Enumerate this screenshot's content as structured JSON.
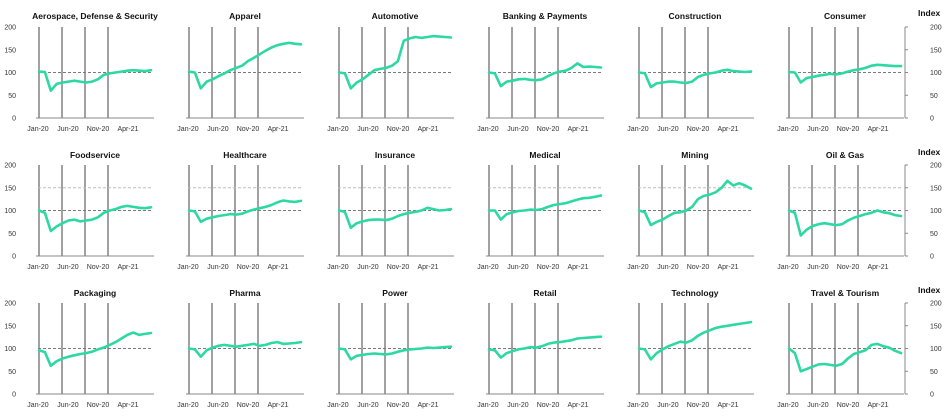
{
  "layout": {
    "cols": 6,
    "rows": 3,
    "ylim": [
      0,
      200
    ],
    "yticks": [
      0,
      50,
      100,
      150,
      200
    ],
    "xticks": [
      "Jan-20",
      "Jun-20",
      "Nov-20",
      "Apr-21"
    ],
    "right_axis_label": "Index",
    "line_color": "#2ed8a3",
    "baseline_color": "#7a7a7a",
    "upper_ref_color": "#bdbdbd",
    "axis_color": "#888888",
    "divider_color": "#6e6e6e"
  },
  "chart_data": [
    {
      "type": "line",
      "title": "Aerospace, Defense & Security",
      "ylim": [
        0,
        200
      ],
      "ref_lines": [
        100
      ],
      "x": [
        "Jan-20",
        "Feb-20",
        "Mar-20",
        "Apr-20",
        "May-20",
        "Jun-20",
        "Jul-20",
        "Aug-20",
        "Sep-20",
        "Oct-20",
        "Nov-20",
        "Dec-20",
        "Jan-21",
        "Feb-21",
        "Mar-21",
        "Apr-21",
        "May-21",
        "Jun-21",
        "Jul-21",
        "Aug-21"
      ],
      "values": [
        102,
        101,
        60,
        75,
        78,
        80,
        82,
        80,
        78,
        80,
        85,
        95,
        98,
        100,
        102,
        104,
        105,
        104,
        103,
        105
      ]
    },
    {
      "type": "line",
      "title": "Apparel",
      "ylim": [
        0,
        200
      ],
      "ref_lines": [
        100
      ],
      "x": [
        "Jan-20",
        "Feb-20",
        "Mar-20",
        "Apr-20",
        "May-20",
        "Jun-20",
        "Jul-20",
        "Aug-20",
        "Sep-20",
        "Oct-20",
        "Nov-20",
        "Dec-20",
        "Jan-21",
        "Feb-21",
        "Mar-21",
        "Apr-21",
        "May-21",
        "Jun-21",
        "Jul-21",
        "Aug-21"
      ],
      "values": [
        102,
        100,
        65,
        80,
        85,
        92,
        98,
        105,
        110,
        115,
        125,
        132,
        140,
        148,
        155,
        160,
        163,
        165,
        163,
        162
      ]
    },
    {
      "type": "line",
      "title": "Automotive",
      "ylim": [
        0,
        200
      ],
      "ref_lines": [
        100
      ],
      "x": [
        "Jan-20",
        "Feb-20",
        "Mar-20",
        "Apr-20",
        "May-20",
        "Jun-20",
        "Jul-20",
        "Aug-20",
        "Sep-20",
        "Oct-20",
        "Nov-20",
        "Dec-20",
        "Jan-21",
        "Feb-21",
        "Mar-21",
        "Apr-21",
        "May-21",
        "Jun-21",
        "Jul-21",
        "Aug-21"
      ],
      "values": [
        100,
        98,
        65,
        78,
        85,
        95,
        105,
        108,
        110,
        115,
        125,
        170,
        175,
        178,
        176,
        178,
        180,
        179,
        178,
        177
      ]
    },
    {
      "type": "line",
      "title": "Banking & Payments",
      "ylim": [
        0,
        200
      ],
      "ref_lines": [
        100
      ],
      "x": [
        "Jan-20",
        "Feb-20",
        "Mar-20",
        "Apr-20",
        "May-20",
        "Jun-20",
        "Jul-20",
        "Aug-20",
        "Sep-20",
        "Oct-20",
        "Nov-20",
        "Dec-20",
        "Jan-21",
        "Feb-21",
        "Mar-21",
        "Apr-21",
        "May-21",
        "Jun-21",
        "Jul-21",
        "Aug-21"
      ],
      "values": [
        100,
        98,
        70,
        80,
        82,
        85,
        86,
        84,
        83,
        85,
        92,
        98,
        102,
        104,
        110,
        120,
        112,
        113,
        112,
        111
      ]
    },
    {
      "type": "line",
      "title": "Construction",
      "ylim": [
        0,
        200
      ],
      "ref_lines": [
        100
      ],
      "x": [
        "Jan-20",
        "Feb-20",
        "Mar-20",
        "Apr-20",
        "May-20",
        "Jun-20",
        "Jul-20",
        "Aug-20",
        "Sep-20",
        "Oct-20",
        "Nov-20",
        "Dec-20",
        "Jan-21",
        "Feb-21",
        "Mar-21",
        "Apr-21",
        "May-21",
        "Jun-21",
        "Jul-21",
        "Aug-21"
      ],
      "values": [
        100,
        98,
        68,
        76,
        78,
        80,
        80,
        78,
        77,
        80,
        90,
        95,
        98,
        100,
        104,
        106,
        103,
        102,
        101,
        102
      ]
    },
    {
      "type": "line",
      "title": "Consumer",
      "ylim": [
        0,
        200
      ],
      "ref_lines": [
        100
      ],
      "x": [
        "Jan-20",
        "Feb-20",
        "Mar-20",
        "Apr-20",
        "May-20",
        "Jun-20",
        "Jul-20",
        "Aug-20",
        "Sep-20",
        "Oct-20",
        "Nov-20",
        "Dec-20",
        "Jan-21",
        "Feb-21",
        "Mar-21",
        "Apr-21",
        "May-21",
        "Jun-21",
        "Jul-21",
        "Aug-21"
      ],
      "values": [
        101,
        100,
        78,
        88,
        90,
        93,
        95,
        97,
        96,
        98,
        102,
        105,
        107,
        110,
        115,
        117,
        116,
        115,
        114,
        114
      ]
    },
    {
      "type": "line",
      "title": "Foodservice",
      "ylim": [
        0,
        200
      ],
      "ref_lines": [
        100,
        150
      ],
      "x": [
        "Jan-20",
        "Feb-20",
        "Mar-20",
        "Apr-20",
        "May-20",
        "Jun-20",
        "Jul-20",
        "Aug-20",
        "Sep-20",
        "Oct-20",
        "Nov-20",
        "Dec-20",
        "Jan-21",
        "Feb-21",
        "Mar-21",
        "Apr-21",
        "May-21",
        "Jun-21",
        "Jul-21",
        "Aug-21"
      ],
      "values": [
        100,
        95,
        55,
        65,
        72,
        78,
        80,
        76,
        78,
        80,
        85,
        95,
        100,
        103,
        108,
        110,
        108,
        106,
        105,
        107
      ]
    },
    {
      "type": "line",
      "title": "Healthcare",
      "ylim": [
        0,
        200
      ],
      "ref_lines": [
        100,
        150
      ],
      "x": [
        "Jan-20",
        "Feb-20",
        "Mar-20",
        "Apr-20",
        "May-20",
        "Jun-20",
        "Jul-20",
        "Aug-20",
        "Sep-20",
        "Oct-20",
        "Nov-20",
        "Dec-20",
        "Jan-21",
        "Feb-21",
        "Mar-21",
        "Apr-21",
        "May-21",
        "Jun-21",
        "Jul-21",
        "Aug-21"
      ],
      "values": [
        100,
        98,
        75,
        82,
        85,
        88,
        90,
        92,
        91,
        93,
        98,
        102,
        105,
        108,
        112,
        118,
        122,
        120,
        119,
        121
      ]
    },
    {
      "type": "line",
      "title": "Insurance",
      "ylim": [
        0,
        200
      ],
      "ref_lines": [
        100,
        150
      ],
      "x": [
        "Jan-20",
        "Feb-20",
        "Mar-20",
        "Apr-20",
        "May-20",
        "Jun-20",
        "Jul-20",
        "Aug-20",
        "Sep-20",
        "Oct-20",
        "Nov-20",
        "Dec-20",
        "Jan-21",
        "Feb-21",
        "Mar-21",
        "Apr-21",
        "May-21",
        "Jun-21",
        "Jul-21",
        "Aug-21"
      ],
      "values": [
        100,
        97,
        62,
        72,
        76,
        79,
        80,
        80,
        79,
        82,
        88,
        92,
        95,
        97,
        100,
        106,
        103,
        100,
        101,
        103
      ]
    },
    {
      "type": "line",
      "title": "Medical",
      "ylim": [
        0,
        200
      ],
      "ref_lines": [
        100,
        150
      ],
      "x": [
        "Jan-20",
        "Feb-20",
        "Mar-20",
        "Apr-20",
        "May-20",
        "Jun-20",
        "Jul-20",
        "Aug-20",
        "Sep-20",
        "Oct-20",
        "Nov-20",
        "Dec-20",
        "Jan-21",
        "Feb-21",
        "Mar-21",
        "Apr-21",
        "May-21",
        "Jun-21",
        "Jul-21",
        "Aug-21"
      ],
      "values": [
        100,
        100,
        80,
        92,
        96,
        99,
        100,
        102,
        101,
        103,
        108,
        112,
        114,
        116,
        120,
        124,
        127,
        128,
        130,
        133
      ]
    },
    {
      "type": "line",
      "title": "Mining",
      "ylim": [
        0,
        200
      ],
      "ref_lines": [
        100,
        150
      ],
      "x": [
        "Jan-20",
        "Feb-20",
        "Mar-20",
        "Apr-20",
        "May-20",
        "Jun-20",
        "Jul-20",
        "Aug-20",
        "Sep-20",
        "Oct-20",
        "Nov-20",
        "Dec-20",
        "Jan-21",
        "Feb-21",
        "Mar-21",
        "Apr-21",
        "May-21",
        "Jun-21",
        "Jul-21",
        "Aug-21"
      ],
      "values": [
        100,
        96,
        68,
        75,
        80,
        88,
        95,
        96,
        100,
        108,
        125,
        132,
        135,
        140,
        150,
        165,
        155,
        160,
        155,
        148
      ]
    },
    {
      "type": "line",
      "title": "Oil & Gas",
      "ylim": [
        0,
        200
      ],
      "ref_lines": [
        100,
        150
      ],
      "x": [
        "Jan-20",
        "Feb-20",
        "Mar-20",
        "Apr-20",
        "May-20",
        "Jun-20",
        "Jul-20",
        "Aug-20",
        "Sep-20",
        "Oct-20",
        "Nov-20",
        "Dec-20",
        "Jan-21",
        "Feb-21",
        "Mar-21",
        "Apr-21",
        "May-21",
        "Jun-21",
        "Jul-21",
        "Aug-21"
      ],
      "values": [
        100,
        95,
        45,
        58,
        66,
        70,
        72,
        70,
        68,
        70,
        78,
        84,
        88,
        92,
        95,
        100,
        96,
        94,
        90,
        88
      ]
    },
    {
      "type": "line",
      "title": "Packaging",
      "ylim": [
        0,
        200
      ],
      "ref_lines": [
        100
      ],
      "x": [
        "Jan-20",
        "Feb-20",
        "Mar-20",
        "Apr-20",
        "May-20",
        "Jun-20",
        "Jul-20",
        "Aug-20",
        "Sep-20",
        "Oct-20",
        "Nov-20",
        "Dec-20",
        "Jan-21",
        "Feb-21",
        "Mar-21",
        "Apr-21",
        "May-21",
        "Jun-21",
        "Jul-21",
        "Aug-21"
      ],
      "values": [
        96,
        92,
        62,
        72,
        78,
        82,
        85,
        88,
        90,
        93,
        98,
        102,
        108,
        114,
        122,
        130,
        135,
        130,
        132,
        134
      ]
    },
    {
      "type": "line",
      "title": "Pharma",
      "ylim": [
        0,
        200
      ],
      "ref_lines": [
        100
      ],
      "x": [
        "Jan-20",
        "Feb-20",
        "Mar-20",
        "Apr-20",
        "May-20",
        "Jun-20",
        "Jul-20",
        "Aug-20",
        "Sep-20",
        "Oct-20",
        "Nov-20",
        "Dec-20",
        "Jan-21",
        "Feb-21",
        "Mar-21",
        "Apr-21",
        "May-21",
        "Jun-21",
        "Jul-21",
        "Aug-21"
      ],
      "values": [
        100,
        98,
        82,
        96,
        102,
        106,
        108,
        106,
        104,
        106,
        108,
        110,
        106,
        108,
        112,
        114,
        110,
        111,
        112,
        114
      ]
    },
    {
      "type": "line",
      "title": "Power",
      "ylim": [
        0,
        200
      ],
      "ref_lines": [
        100
      ],
      "x": [
        "Jan-20",
        "Feb-20",
        "Mar-20",
        "Apr-20",
        "May-20",
        "Jun-20",
        "Jul-20",
        "Aug-20",
        "Sep-20",
        "Oct-20",
        "Nov-20",
        "Dec-20",
        "Jan-21",
        "Feb-21",
        "Mar-21",
        "Apr-21",
        "May-21",
        "Jun-21",
        "Jul-21",
        "Aug-21"
      ],
      "values": [
        100,
        98,
        76,
        84,
        86,
        88,
        89,
        88,
        87,
        89,
        93,
        96,
        98,
        99,
        100,
        102,
        101,
        102,
        103,
        104
      ]
    },
    {
      "type": "line",
      "title": "Retail",
      "ylim": [
        0,
        200
      ],
      "ref_lines": [
        100
      ],
      "x": [
        "Jan-20",
        "Feb-20",
        "Mar-20",
        "Apr-20",
        "May-20",
        "Jun-20",
        "Jul-20",
        "Aug-20",
        "Sep-20",
        "Oct-20",
        "Nov-20",
        "Dec-20",
        "Jan-21",
        "Feb-21",
        "Mar-21",
        "Apr-21",
        "May-21",
        "Jun-21",
        "Jul-21",
        "Aug-21"
      ],
      "values": [
        98,
        96,
        80,
        90,
        94,
        98,
        100,
        103,
        102,
        105,
        110,
        113,
        114,
        116,
        118,
        122,
        123,
        124,
        125,
        126
      ]
    },
    {
      "type": "line",
      "title": "Technology",
      "ylim": [
        0,
        200
      ],
      "ref_lines": [
        100
      ],
      "x": [
        "Jan-20",
        "Feb-20",
        "Mar-20",
        "Apr-20",
        "May-20",
        "Jun-20",
        "Jul-20",
        "Aug-20",
        "Sep-20",
        "Oct-20",
        "Nov-20",
        "Dec-20",
        "Jan-21",
        "Feb-21",
        "Mar-21",
        "Apr-21",
        "May-21",
        "Jun-21",
        "Jul-21",
        "Aug-21"
      ],
      "values": [
        100,
        98,
        76,
        90,
        98,
        105,
        110,
        115,
        113,
        118,
        128,
        135,
        140,
        145,
        148,
        150,
        152,
        154,
        156,
        158
      ]
    },
    {
      "type": "line",
      "title": "Travel & Tourism",
      "ylim": [
        0,
        200
      ],
      "ref_lines": [
        100
      ],
      "x": [
        "Jan-20",
        "Feb-20",
        "Mar-20",
        "Apr-20",
        "May-20",
        "Jun-20",
        "Jul-20",
        "Aug-20",
        "Sep-20",
        "Oct-20",
        "Nov-20",
        "Dec-20",
        "Jan-21",
        "Feb-21",
        "Mar-21",
        "Apr-21",
        "May-21",
        "Jun-21",
        "Jul-21",
        "Aug-21"
      ],
      "values": [
        100,
        90,
        50,
        55,
        60,
        65,
        66,
        64,
        62,
        66,
        78,
        88,
        92,
        96,
        108,
        110,
        105,
        102,
        95,
        90
      ]
    }
  ]
}
